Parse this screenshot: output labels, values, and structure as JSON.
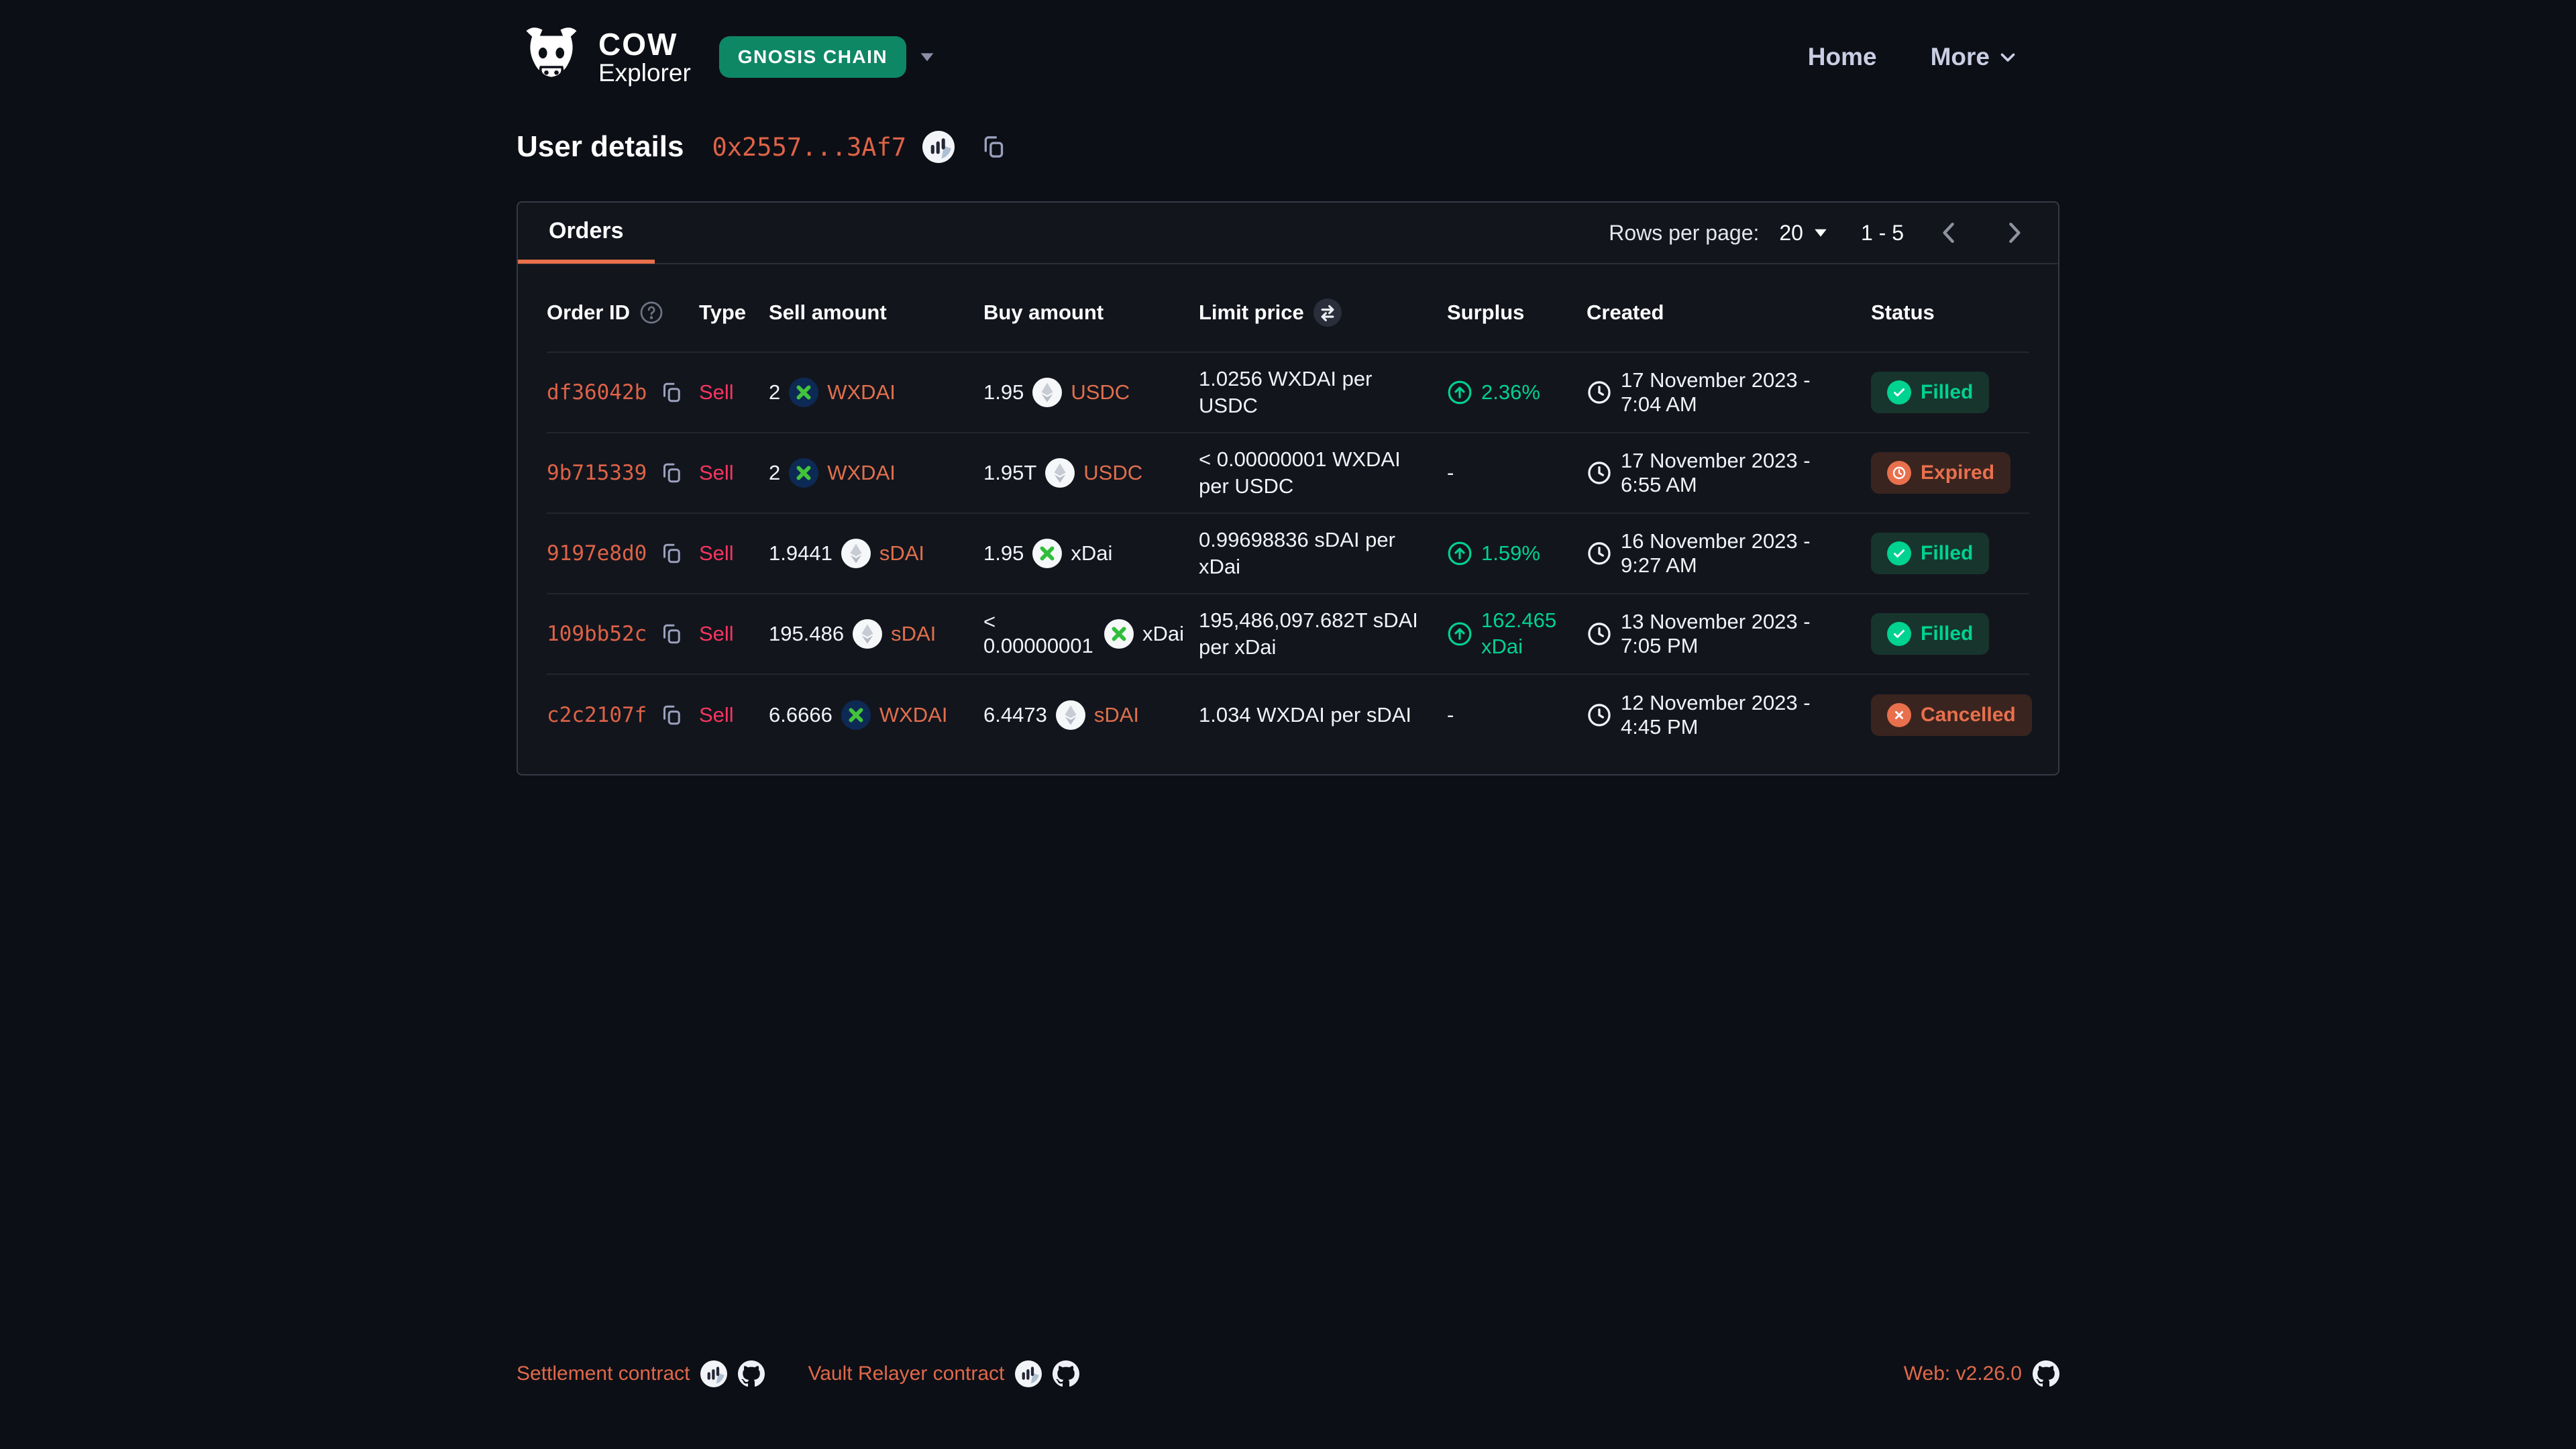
{
  "header": {
    "brand_name": "CoW",
    "brand_sub": "Explorer",
    "network_label": "GNOSIS CHAIN",
    "nav_home": "Home",
    "nav_more": "More"
  },
  "page": {
    "title": "User details",
    "address_short": "0x2557...3Af7"
  },
  "panel": {
    "tab_orders": "Orders",
    "rows_per_page_label": "Rows per page:",
    "rows_per_page_value": "20",
    "page_range": "1 - 5"
  },
  "table": {
    "headers": {
      "order_id": "Order ID",
      "type": "Type",
      "sell": "Sell amount",
      "buy": "Buy amount",
      "limit": "Limit price",
      "surplus": "Surplus",
      "created": "Created",
      "status": "Status"
    },
    "rows": [
      {
        "id": "df36042b",
        "type": "Sell",
        "sell": {
          "amount": "2",
          "token": "WXDAI",
          "icon": "wxdai-token-icon",
          "link": true
        },
        "buy": {
          "amount": "1.95",
          "token": "USDC",
          "icon": "eth-generic-token-icon",
          "link": true
        },
        "limit": "1.0256 WXDAI per USDC",
        "surplus": "2.36%",
        "created": "17 November 2023 - 7:04 AM",
        "status": "Filled",
        "status_kind": "filled"
      },
      {
        "id": "9b715339",
        "type": "Sell",
        "sell": {
          "amount": "2",
          "token": "WXDAI",
          "icon": "wxdai-token-icon",
          "link": true
        },
        "buy": {
          "amount": "1.95T",
          "token": "USDC",
          "icon": "eth-generic-token-icon",
          "link": true
        },
        "limit": "< 0.00000001 WXDAI per USDC",
        "surplus": "-",
        "created": "17 November 2023 - 6:55 AM",
        "status": "Expired",
        "status_kind": "expired"
      },
      {
        "id": "9197e8d0",
        "type": "Sell",
        "sell": {
          "amount": "1.9441",
          "token": "sDAI",
          "icon": "eth-generic-token-icon",
          "link": true
        },
        "buy": {
          "amount": "1.95",
          "token": "xDai",
          "icon": "xdai-token-icon",
          "link": false
        },
        "limit": "0.99698836 sDAI per xDai",
        "surplus": "1.59%",
        "created": "16 November 2023 - 9:27 AM",
        "status": "Filled",
        "status_kind": "filled"
      },
      {
        "id": "109bb52c",
        "type": "Sell",
        "sell": {
          "amount": "195.486",
          "token": "sDAI",
          "icon": "eth-generic-token-icon",
          "link": true
        },
        "buy": {
          "amount": "< 0.00000001",
          "token": "xDai",
          "icon": "xdai-token-icon",
          "link": false
        },
        "limit": "195,486,097.682T sDAI per xDai",
        "surplus": "162.465 xDai",
        "created": "13 November 2023 - 7:05 PM",
        "status": "Filled",
        "status_kind": "filled"
      },
      {
        "id": "c2c2107f",
        "type": "Sell",
        "sell": {
          "amount": "6.6666",
          "token": "WXDAI",
          "icon": "wxdai-token-icon",
          "link": true
        },
        "buy": {
          "amount": "6.4473",
          "token": "sDAI",
          "icon": "eth-generic-token-icon",
          "link": true
        },
        "limit": "1.034 WXDAI per sDAI",
        "surplus": "-",
        "created": "12 November 2023 - 4:45 PM",
        "status": "Cancelled",
        "status_kind": "cancelled"
      }
    ]
  },
  "footer": {
    "settlement_label": "Settlement contract",
    "vault_label": "Vault Relayer contract",
    "web_version": "Web: v2.26.0"
  },
  "icons": {
    "logo": "cow-logo-icon",
    "network_caret": "caret-down-filled-icon",
    "nav_more_caret": "chevron-down-icon",
    "address_explorer": "blockscout-icon",
    "address_copy": "copy-icon",
    "order_id_help": "help-circle-icon",
    "limit_price_swap": "swap-icon",
    "row_copy": "copy-icon",
    "surplus_up": "arrow-up-circle-icon",
    "created_clock": "clock-icon",
    "status_filled": "check-icon",
    "status_expired": "clock-white-icon",
    "status_cancelled": "x-icon",
    "rows_per_page_caret": "caret-down-filled-icon",
    "pagination_prev": "chevron-left-icon",
    "pagination_next": "chevron-right-icon",
    "footer_explorer": "blockscout-icon",
    "footer_github": "github-icon"
  },
  "colors": {
    "background": "#0d0f16",
    "panel": "#13151d",
    "accent_orange": "#dd6347",
    "link_orange": "#e0704c",
    "sell_pink": "#f8355f",
    "green": "#00d290",
    "network_green": "#0e8765",
    "badge_green_bg": "#17352c",
    "badge_orange_bg": "#3a241f"
  }
}
